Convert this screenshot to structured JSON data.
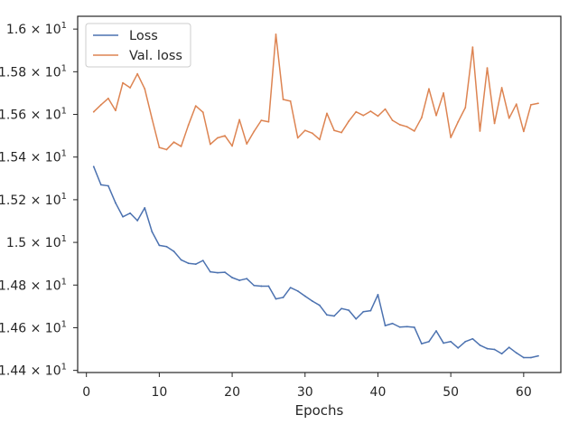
{
  "chart_data": {
    "type": "line",
    "title": "",
    "xlabel": "Epochs",
    "ylabel": "",
    "xlim": [
      -1.2,
      65.1
    ],
    "ylim": [
      14.39,
      16.06
    ],
    "x_ticks": [
      {
        "value": 0,
        "label": "0"
      },
      {
        "value": 10,
        "label": "10"
      },
      {
        "value": 20,
        "label": "20"
      },
      {
        "value": 30,
        "label": "30"
      },
      {
        "value": 40,
        "label": "40"
      },
      {
        "value": 50,
        "label": "50"
      },
      {
        "value": 60,
        "label": "60"
      }
    ],
    "y_ticks": [
      {
        "value": 14.4,
        "mantissa": "1.44",
        "exponent": "1"
      },
      {
        "value": 14.6,
        "mantissa": "1.46",
        "exponent": "1"
      },
      {
        "value": 14.8,
        "mantissa": "1.48",
        "exponent": "1"
      },
      {
        "value": 15.0,
        "mantissa": "1.5",
        "exponent": "1"
      },
      {
        "value": 15.2,
        "mantissa": "1.52",
        "exponent": "1"
      },
      {
        "value": 15.4,
        "mantissa": "1.54",
        "exponent": "1"
      },
      {
        "value": 15.6,
        "mantissa": "1.56",
        "exponent": "1"
      },
      {
        "value": 15.8,
        "mantissa": "1.58",
        "exponent": "1"
      },
      {
        "value": 16.0,
        "mantissa": "1.6",
        "exponent": "1"
      }
    ],
    "y_tick_format": {
      "times": "×",
      "base": "10"
    },
    "grid": false,
    "legend_position": "top-left",
    "x": [
      1,
      2,
      3,
      4,
      5,
      6,
      7,
      8,
      9,
      10,
      11,
      12,
      13,
      14,
      15,
      16,
      17,
      18,
      19,
      20,
      21,
      22,
      23,
      24,
      25,
      26,
      27,
      28,
      29,
      30,
      31,
      32,
      33,
      34,
      35,
      36,
      37,
      38,
      39,
      40,
      41,
      42,
      43,
      44,
      45,
      46,
      47,
      48,
      49,
      50,
      51,
      52,
      53,
      54,
      55,
      56,
      57,
      58,
      59,
      60,
      61,
      62
    ],
    "series": [
      {
        "name": "Loss",
        "color": "#4c72b0",
        "values": [
          15.355,
          15.27,
          15.265,
          15.185,
          15.12,
          15.137,
          15.102,
          15.162,
          15.05,
          14.986,
          14.98,
          14.958,
          14.918,
          14.902,
          14.898,
          14.915,
          14.862,
          14.858,
          14.86,
          14.835,
          14.822,
          14.83,
          14.798,
          14.795,
          14.795,
          14.735,
          14.742,
          14.788,
          14.772,
          14.748,
          14.725,
          14.705,
          14.66,
          14.655,
          14.69,
          14.682,
          14.641,
          14.675,
          14.68,
          14.755,
          14.61,
          14.62,
          14.603,
          14.605,
          14.602,
          14.525,
          14.535,
          14.585,
          14.528,
          14.535,
          14.505,
          14.535,
          14.548,
          14.518,
          14.502,
          14.498,
          14.478,
          14.508,
          14.482,
          14.46,
          14.46,
          14.468
        ]
      },
      {
        "name": "Val. loss",
        "color": "#dd8452",
        "values": [
          15.612,
          15.645,
          15.675,
          15.618,
          15.748,
          15.725,
          15.79,
          15.72,
          15.58,
          15.445,
          15.435,
          15.47,
          15.45,
          15.55,
          15.64,
          15.61,
          15.46,
          15.49,
          15.5,
          15.452,
          15.575,
          15.462,
          15.52,
          15.572,
          15.565,
          15.975,
          15.67,
          15.662,
          15.49,
          15.525,
          15.512,
          15.482,
          15.605,
          15.525,
          15.515,
          15.568,
          15.612,
          15.595,
          15.615,
          15.592,
          15.625,
          15.572,
          15.552,
          15.542,
          15.522,
          15.585,
          15.72,
          15.595,
          15.7,
          15.492,
          15.565,
          15.632,
          15.915,
          15.522,
          15.818,
          15.558,
          15.725,
          15.582,
          15.648,
          15.52,
          15.645,
          15.652
        ]
      }
    ]
  }
}
